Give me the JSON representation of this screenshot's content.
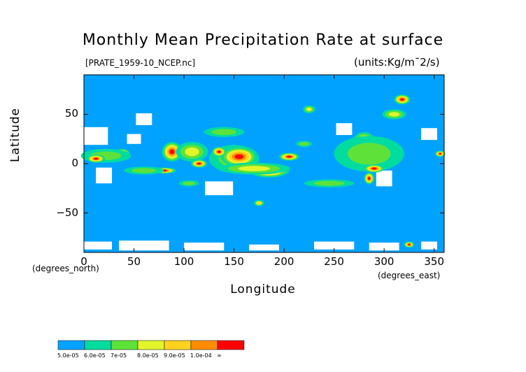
{
  "chart_data": {
    "type": "heatmap",
    "title": "Monthly Mean Precipitation Rate at surface",
    "file_label": "[PRATE_1959-10_NCEP.nc]",
    "units_label": "(units:Kg/m¯2/s)",
    "xlabel": "Longitude",
    "ylabel": "Latitude",
    "x_unit_label": "(degrees_east)",
    "y_unit_label": "(degrees_north)",
    "xlim": [
      0,
      360
    ],
    "ylim": [
      -90,
      90
    ],
    "x_ticks": [
      0,
      50,
      100,
      150,
      200,
      250,
      300,
      350
    ],
    "y_ticks": [
      50,
      0,
      -50
    ],
    "x_tick_labels": [
      "0",
      "50",
      "100",
      "150",
      "200",
      "250",
      "300",
      "350"
    ],
    "y_tick_labels": [
      "50",
      "0",
      "−50"
    ],
    "levels": [
      {
        "label": "5.0e-05",
        "color": "#00a2ff"
      },
      {
        "label": "6.0e-05",
        "color": "#00dca0"
      },
      {
        "label": "7e-05",
        "color": "#5ee23a"
      },
      {
        "label": "8.0e-05",
        "color": "#e2f52b"
      },
      {
        "label": "9.0e-05",
        "color": "#ffd21e"
      },
      {
        "label": "1.0e-04",
        "color": "#ff8c00"
      },
      {
        "label": "∞",
        "color": "#ff0000"
      }
    ],
    "regions": [
      {
        "lon": 150,
        "lat": 5,
        "rlon": 25,
        "rlat": 14,
        "level": 2
      },
      {
        "lon": 155,
        "lat": 7,
        "rlon": 18,
        "rlat": 10,
        "level": 6
      },
      {
        "lon": 185,
        "lat": -7,
        "rlon": 20,
        "rlat": 7,
        "level": 6
      },
      {
        "lon": 170,
        "lat": -5,
        "rlon": 36,
        "rlat": 6,
        "level": 3
      },
      {
        "lon": 205,
        "lat": 7,
        "rlon": 10,
        "rlat": 4,
        "level": 6
      },
      {
        "lon": 88,
        "lat": 12,
        "rlon": 10,
        "rlat": 10,
        "level": 6
      },
      {
        "lon": 108,
        "lat": 12,
        "rlon": 16,
        "rlat": 10,
        "level": 3
      },
      {
        "lon": 115,
        "lat": 0,
        "rlon": 8,
        "rlat": 4,
        "level": 6
      },
      {
        "lon": 135,
        "lat": 12,
        "rlon": 7,
        "rlat": 5,
        "level": 6
      },
      {
        "lon": 38,
        "lat": 10,
        "rlon": 8,
        "rlat": 5,
        "level": 6
      },
      {
        "lon": 22,
        "lat": 8,
        "rlon": 25,
        "rlat": 7,
        "level": 2
      },
      {
        "lon": 12,
        "lat": 5,
        "rlon": 9,
        "rlat": 4,
        "level": 6
      },
      {
        "lon": 80,
        "lat": -7,
        "rlon": 12,
        "rlat": 3,
        "level": 6
      },
      {
        "lon": 60,
        "lat": -7,
        "rlon": 20,
        "rlat": 4,
        "level": 2
      },
      {
        "lon": 140,
        "lat": 32,
        "rlon": 20,
        "rlat": 5,
        "level": 2
      },
      {
        "lon": 245,
        "lat": -20,
        "rlon": 25,
        "rlat": 4,
        "level": 2
      },
      {
        "lon": 280,
        "lat": 20,
        "rlon": 12,
        "rlat": 12,
        "level": 6
      },
      {
        "lon": 262,
        "lat": 12,
        "rlon": 12,
        "rlat": 5,
        "level": 6
      },
      {
        "lon": 295,
        "lat": 15,
        "rlon": 10,
        "rlat": 6,
        "level": 6
      },
      {
        "lon": 285,
        "lat": 10,
        "rlon": 35,
        "rlat": 18,
        "level": 2
      },
      {
        "lon": 290,
        "lat": -5,
        "rlon": 10,
        "rlat": 4,
        "level": 6
      },
      {
        "lon": 285,
        "lat": -15,
        "rlon": 5,
        "rlat": 6,
        "level": 6
      },
      {
        "lon": 318,
        "lat": 65,
        "rlon": 8,
        "rlat": 5,
        "level": 6
      },
      {
        "lon": 310,
        "lat": 50,
        "rlon": 12,
        "rlat": 5,
        "level": 3
      },
      {
        "lon": 356,
        "lat": 10,
        "rlon": 5,
        "rlat": 3,
        "level": 6
      },
      {
        "lon": 225,
        "lat": 55,
        "rlon": 6,
        "rlat": 4,
        "level": 3
      },
      {
        "lon": 175,
        "lat": -40,
        "rlon": 5,
        "rlat": 3,
        "level": 4
      },
      {
        "lon": 325,
        "lat": -82,
        "rlon": 5,
        "rlat": 3,
        "level": 6
      },
      {
        "lon": 220,
        "lat": 20,
        "rlon": 8,
        "rlat": 3,
        "level": 2
      },
      {
        "lon": 105,
        "lat": -20,
        "rlon": 10,
        "rlat": 3,
        "level": 2
      }
    ],
    "no_data_regions": [
      {
        "lon": 10,
        "lat": 28,
        "rlon": 14,
        "rlat": 9
      },
      {
        "lon": 20,
        "lat": -12,
        "rlon": 8,
        "rlat": 8
      },
      {
        "lon": 60,
        "lat": 45,
        "rlon": 8,
        "rlat": 6
      },
      {
        "lon": 50,
        "lat": 25,
        "rlon": 7,
        "rlat": 5
      },
      {
        "lon": 135,
        "lat": -25,
        "rlon": 14,
        "rlat": 7
      },
      {
        "lon": 300,
        "lat": -15,
        "rlon": 8,
        "rlat": 8
      },
      {
        "lon": 345,
        "lat": 30,
        "rlon": 8,
        "rlat": 6
      },
      {
        "lon": 260,
        "lat": 35,
        "rlon": 8,
        "rlat": 6
      },
      {
        "lon": 10,
        "lat": -83,
        "rlon": 18,
        "rlat": 4
      },
      {
        "lon": 60,
        "lat": -83,
        "rlon": 25,
        "rlat": 5
      },
      {
        "lon": 120,
        "lat": -84,
        "rlon": 20,
        "rlat": 4
      },
      {
        "lon": 180,
        "lat": -85,
        "rlon": 15,
        "rlat": 3
      },
      {
        "lon": 250,
        "lat": -83,
        "rlon": 20,
        "rlat": 4
      },
      {
        "lon": 300,
        "lat": -84,
        "rlon": 15,
        "rlat": 4
      },
      {
        "lon": 345,
        "lat": -83,
        "rlon": 8,
        "rlat": 4
      }
    ],
    "grid": false,
    "legend": "bottom-left colorbar"
  }
}
